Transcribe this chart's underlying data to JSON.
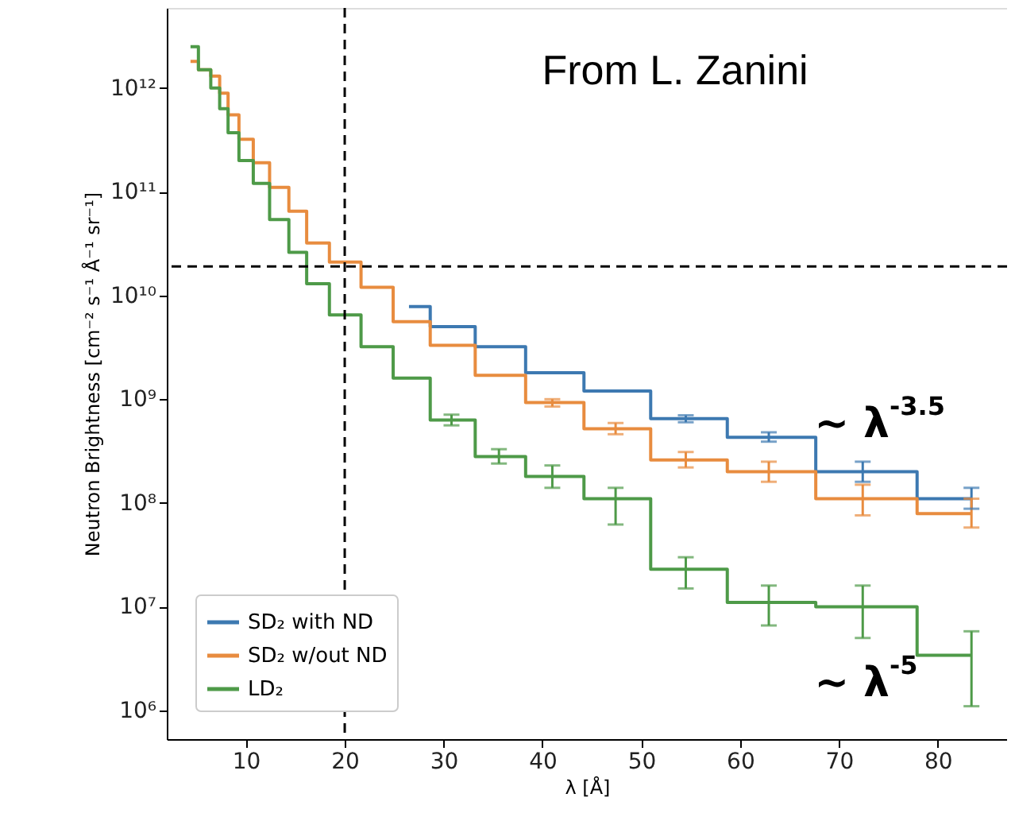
{
  "chart_data": {
    "type": "step",
    "xlabel": "λ [Å]",
    "ylabel": "Neutron Brightness [cm⁻² s⁻¹ Å⁻¹ sr⁻¹]",
    "x": [
      4.4,
      6,
      6.9,
      7.8,
      8.6,
      10,
      11.5,
      13.3,
      15.4,
      16.9,
      20,
      23.3,
      26.5,
      30.8,
      35.6,
      41,
      47.4,
      54.5,
      62.9,
      72.4,
      83.4
    ],
    "series": [
      {
        "name": "SD₂ with ND",
        "color": "#3d79b1",
        "values": [
          null,
          null,
          null,
          null,
          null,
          null,
          null,
          null,
          null,
          null,
          null,
          null,
          7800000000.0,
          5000000000.0,
          3200000000.0,
          1800000000.0,
          1200000000.0,
          650000000.0,
          430000000.0,
          200000000.0,
          110000000.0
        ],
        "errors": [
          null,
          null,
          null,
          null,
          null,
          null,
          null,
          null,
          null,
          null,
          null,
          null,
          null,
          null,
          null,
          null,
          null,
          [
            600000000.0,
            700000000.0
          ],
          [
            390000000.0,
            480000000.0
          ],
          [
            160000000.0,
            250000000.0
          ],
          [
            88000000.0,
            140000000.0
          ]
        ]
      },
      {
        "name": "SD₂ w/out ND",
        "color": "#e88c3f",
        "values": [
          1800000000000.0,
          1500000000000.0,
          1300000000000.0,
          890000000000.0,
          550000000000.0,
          320000000000.0,
          190000000000.0,
          110000000000.0,
          65000000000.0,
          32000000000.0,
          21000000000.0,
          12000000000.0,
          5600000000.0,
          3300000000.0,
          1700000000.0,
          930000000.0,
          520000000.0,
          260000000.0,
          200000000.0,
          110000000.0,
          79000000.0
        ],
        "errors": [
          null,
          null,
          null,
          null,
          null,
          null,
          null,
          null,
          null,
          null,
          null,
          null,
          null,
          null,
          null,
          [
            850000000.0,
            1000000000.0
          ],
          [
            460000000.0,
            590000000.0
          ],
          [
            220000000.0,
            310000000.0
          ],
          [
            160000000.0,
            250000000.0
          ],
          [
            76000000.0,
            150000000.0
          ],
          [
            58000000.0,
            110000000.0
          ]
        ]
      },
      {
        "name": "LD₂",
        "color": "#4e9a48",
        "values": [
          2500000000000.0,
          1500000000000.0,
          1000000000000.0,
          630000000000.0,
          370000000000.0,
          200000000000.0,
          120000000000.0,
          54000000000.0,
          26000000000.0,
          13000000000.0,
          6500000000.0,
          3200000000.0,
          1600000000.0,
          630000000.0,
          280000000.0,
          180000000.0,
          110000000.0,
          23000000.0,
          11000000.0,
          10000000.0,
          3400000.0
        ],
        "errors": [
          null,
          null,
          null,
          null,
          null,
          null,
          null,
          null,
          null,
          null,
          null,
          null,
          null,
          [
            560000000.0,
            710000000.0
          ],
          [
            240000000.0,
            330000000.0
          ],
          [
            140000000.0,
            230000000.0
          ],
          [
            62000000.0,
            140000000.0
          ],
          [
            15000000.0,
            30000000.0
          ],
          [
            6600000.0,
            16000000.0
          ],
          [
            5000000.0,
            16000000.0
          ],
          [
            1100000.0,
            5800000.0
          ]
        ]
      }
    ],
    "log": "y",
    "xlim": [
      2,
      87
    ],
    "xticks": [
      10,
      20,
      30,
      40,
      50,
      60,
      70,
      80
    ],
    "ylim": [
      530000.0,
      5900000000000.0
    ],
    "yticks": [
      {
        "value": 1000000.0,
        "label": "10⁶"
      },
      {
        "value": 10000000.0,
        "label": "10⁷"
      },
      {
        "value": 100000000.0,
        "label": "10⁸"
      },
      {
        "value": 1000000000.0,
        "label": "10⁹"
      },
      {
        "value": 10000000000.0,
        "label": "10¹⁰"
      },
      {
        "value": 100000000000.0,
        "label": "10¹¹"
      },
      {
        "value": 1000000000000.0,
        "label": "10¹²"
      }
    ],
    "ref_lines": [
      {
        "axis": "x",
        "value": 20,
        "line_style": "dashed",
        "color": "#000000"
      },
      {
        "axis": "y",
        "value": 19000000000.0,
        "line_style": "dashed",
        "color": "#000000"
      }
    ],
    "annotations": [
      "From L. Zanini",
      "~ λ$^{-3.5}$",
      "~ λ$^{-5}$"
    ],
    "legend": "bottom left",
    "grid": false,
    "marker": "none",
    "line_style": "solid"
  }
}
